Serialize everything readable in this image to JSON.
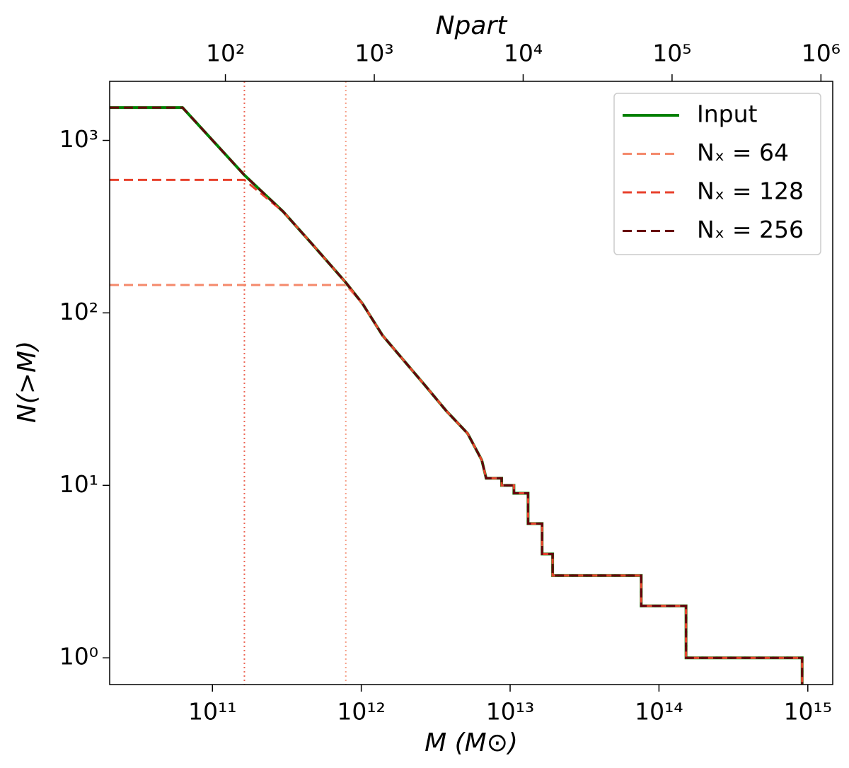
{
  "chart_data": {
    "type": "line",
    "step": true,
    "xlabel": "M (M⊙)",
    "ylabel": "N(>M)",
    "x2label": "Npart",
    "xscale": "log",
    "yscale": "log",
    "x2scale": "log",
    "xlim": [
      20400000000.0,
      1470000000000000.0
    ],
    "ylim": [
      0.7,
      2200
    ],
    "x2lim": [
      16.7,
      1200000.0
    ],
    "xticks": [
      {
        "value": 100000000000.0,
        "label": "10¹¹"
      },
      {
        "value": 1000000000000.0,
        "label": "10¹²"
      },
      {
        "value": 10000000000000.0,
        "label": "10¹³"
      },
      {
        "value": 100000000000000.0,
        "label": "10¹⁴"
      },
      {
        "value": 1000000000000000.0,
        "label": "10¹⁵"
      }
    ],
    "yticks": [
      {
        "value": 1,
        "label": "10⁰"
      },
      {
        "value": 10,
        "label": "10¹"
      },
      {
        "value": 100,
        "label": "10²"
      },
      {
        "value": 1000,
        "label": "10³"
      }
    ],
    "x2ticks": [
      {
        "value": 100,
        "label": "10²"
      },
      {
        "value": 1000,
        "label": "10³"
      },
      {
        "value": 10000,
        "label": "10⁴"
      },
      {
        "value": 100000,
        "label": "10⁵"
      },
      {
        "value": 1000000,
        "label": "10⁶"
      }
    ],
    "legend": "upper right",
    "x": [
      20400000000.0,
      63000000000.0,
      164000000000.0,
      300000000000.0,
      465000000000.0,
      787000000000.0,
      1020000000000.0,
      1390000000000.0,
      1930000000000.0,
      2680000000000.0,
      3730000000000.0,
      5180000000000.0,
      6450000000000.0,
      6900000000000.0,
      8770000000000.0,
      8770000000000.0,
      10600000000000.0,
      10600000000000.0,
      13200000000000.0,
      13200000000000.0,
      16400000000000.0,
      16400000000000.0,
      19300000000000.0,
      19300000000000.0,
      76000000000000.0,
      76000000000000.0,
      152000000000000.0,
      152000000000000.0,
      916000000000000.0,
      916000000000000.0
    ],
    "series": [
      {
        "name": "Input",
        "color": "#008000",
        "linestyle": "solid",
        "values": [
          1550,
          1550,
          629,
          385,
          252,
          150,
          113,
          74,
          53,
          38,
          27,
          20,
          14,
          11,
          11,
          10,
          10,
          9,
          9,
          6,
          6,
          4,
          4,
          3,
          3,
          2,
          2,
          1,
          1,
          0
        ]
      },
      {
        "name": "Nₓ = 64",
        "color": "#f4896b",
        "linestyle": "dashed",
        "values": [
          145,
          145,
          145,
          145,
          145,
          145,
          113,
          74,
          53,
          38,
          27,
          20,
          14,
          11,
          11,
          10,
          10,
          9,
          9,
          6,
          6,
          4,
          4,
          3,
          3,
          2,
          2,
          1,
          1,
          0
        ]
      },
      {
        "name": "Nₓ = 128",
        "color": "#e8412c",
        "linestyle": "dashed",
        "values": [
          590,
          590,
          590,
          385,
          252,
          150,
          113,
          74,
          53,
          38,
          27,
          20,
          14,
          11,
          11,
          10,
          10,
          9,
          9,
          6,
          6,
          4,
          4,
          3,
          3,
          2,
          2,
          1,
          1,
          0
        ]
      },
      {
        "name": "Nₓ = 256",
        "color": "#67000d",
        "linestyle": "dashed",
        "values": [
          1550,
          1550,
          629,
          385,
          252,
          150,
          113,
          74,
          53,
          38,
          27,
          20,
          14,
          11,
          11,
          10,
          10,
          9,
          9,
          6,
          6,
          4,
          4,
          3,
          3,
          2,
          2,
          1,
          1,
          0
        ]
      }
    ],
    "vlines": [
      {
        "x": 164000000000.0,
        "color": "#e8412c",
        "linestyle": "dotted"
      },
      {
        "x": 787000000000.0,
        "color": "#f4896b",
        "linestyle": "dotted"
      }
    ]
  }
}
